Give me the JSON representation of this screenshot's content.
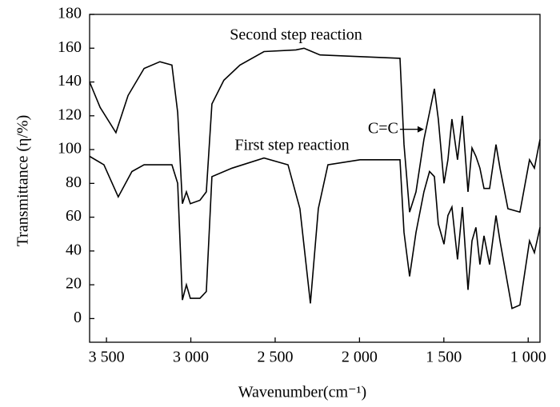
{
  "chart_data": {
    "type": "line",
    "xlabel": "Wavenumber(cm⁻¹)",
    "ylabel": "Transmittance (η/%)",
    "xlim": [
      3600,
      930
    ],
    "ylim": [
      -14,
      180
    ],
    "xticks": [
      {
        "value": 3500,
        "label": "3 500"
      },
      {
        "value": 3000,
        "label": "3 000"
      },
      {
        "value": 2500,
        "label": "2 500"
      },
      {
        "value": 2000,
        "label": "2 000"
      },
      {
        "value": 1500,
        "label": "1 500"
      },
      {
        "value": 1000,
        "label": "1 000"
      }
    ],
    "yticks": [
      0,
      20,
      40,
      60,
      80,
      100,
      120,
      140,
      160,
      180
    ],
    "annotations": [
      {
        "text": "C=C",
        "x": 1618,
        "y": 112
      }
    ],
    "series": [
      {
        "name": "Second step reaction",
        "color": "#000000",
        "x": [
          3600,
          3538,
          3444,
          3372,
          3277,
          3183,
          3112,
          3078,
          3050,
          3026,
          3003,
          2946,
          2908,
          2875,
          2804,
          2709,
          2566,
          2377,
          2329,
          2234,
          1997,
          1760,
          1736,
          1703,
          1665,
          1618,
          1585,
          1556,
          1533,
          1499,
          1476,
          1452,
          1419,
          1390,
          1357,
          1333,
          1310,
          1286,
          1262,
          1229,
          1191,
          1167,
          1120,
          1049,
          992,
          963,
          930
        ],
        "values": [
          140,
          125,
          110,
          132,
          148,
          152,
          150,
          122,
          68,
          75,
          68,
          70,
          75,
          127,
          141,
          150,
          158,
          159,
          160,
          156,
          155,
          154,
          103,
          63,
          75,
          106,
          122,
          136,
          118,
          80,
          94,
          118,
          94,
          120,
          75,
          101,
          96,
          89,
          77,
          77,
          103,
          89,
          65,
          63,
          94,
          89,
          106
        ]
      },
      {
        "name": "First step reaction",
        "color": "#000000",
        "x": [
          3600,
          3515,
          3430,
          3349,
          3277,
          3112,
          3078,
          3050,
          3026,
          3003,
          2946,
          2908,
          2875,
          2756,
          2566,
          2424,
          2353,
          2291,
          2244,
          2187,
          1997,
          1760,
          1736,
          1703,
          1665,
          1618,
          1585,
          1556,
          1533,
          1499,
          1476,
          1452,
          1419,
          1390,
          1357,
          1333,
          1310,
          1286,
          1262,
          1229,
          1191,
          1167,
          1096,
          1049,
          992,
          963,
          930
        ],
        "values": [
          96,
          91,
          72,
          87,
          91,
          91,
          80,
          11,
          20,
          12,
          12,
          16,
          84,
          89,
          95,
          91,
          65,
          9,
          65,
          91,
          94,
          94,
          51,
          25,
          51,
          75,
          87,
          84,
          56,
          44,
          61,
          66,
          35,
          66,
          17,
          46,
          54,
          32,
          49,
          32,
          61,
          46,
          6,
          8,
          46,
          39,
          54
        ]
      }
    ]
  }
}
